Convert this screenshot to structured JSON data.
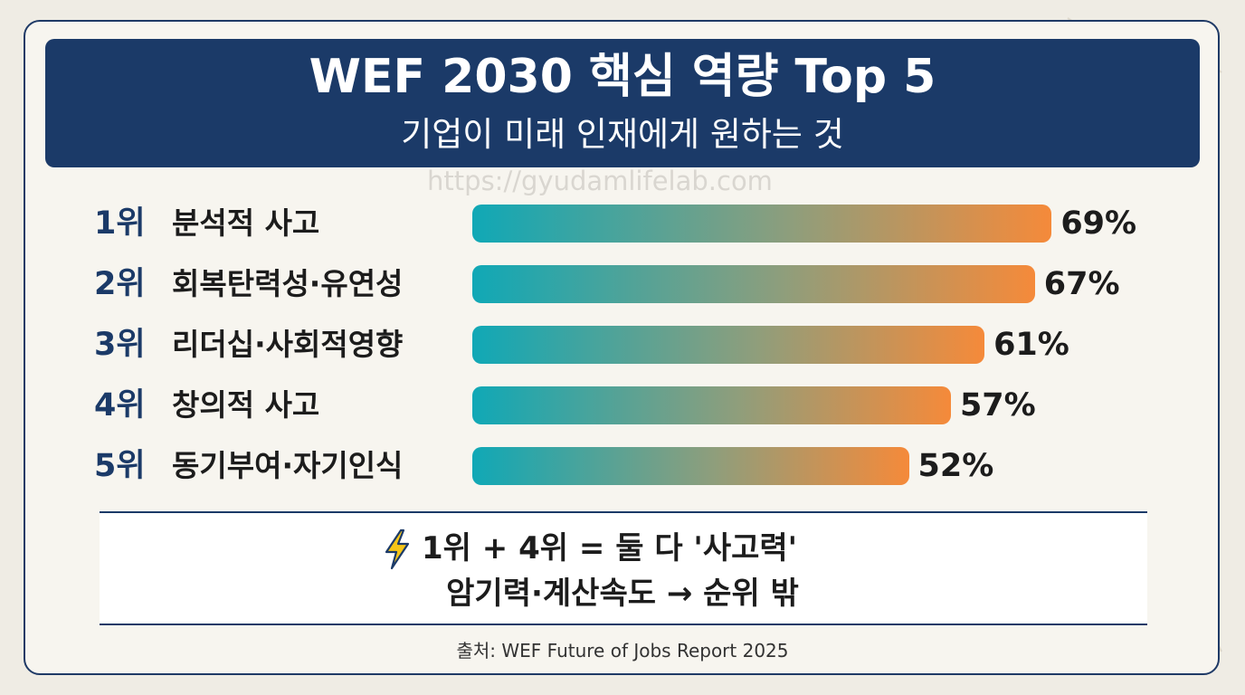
{
  "header": {
    "title": "WEF 2030 핵심 역량 Top 5",
    "subtitle": "기업이 미래 인재에게 원하는 것"
  },
  "watermark": "https://gyudamlifelab.com",
  "chart_data": {
    "type": "bar",
    "orientation": "horizontal",
    "title": "WEF 2030 핵심 역량 Top 5",
    "subtitle": "기업이 미래 인재에게 원하는 것",
    "categories": [
      "분석적 사고",
      "회복탄력성·유연성",
      "리더십·사회적영향",
      "창의적 사고",
      "동기부여·자기인식"
    ],
    "ranks": [
      "1위",
      "2위",
      "3위",
      "4위",
      "5위"
    ],
    "values": [
      69,
      67,
      61,
      57,
      52
    ],
    "value_labels": [
      "69%",
      "67%",
      "61%",
      "57%",
      "52%"
    ],
    "unit": "%",
    "bar_colors": [
      "#10a8b6",
      "#f58a3a"
    ],
    "grid": false,
    "legend": "none"
  },
  "callout": {
    "icon": "lightning-icon",
    "line1": "1위 + 4위 = 둘 다 '사고력'",
    "line2": "암기력·계산속도 → 순위 밖"
  },
  "source": "출처: WEF Future of Jobs Report 2025",
  "colors": {
    "navy": "#1b3a68",
    "teal": "#10a8b6",
    "orange": "#f58a3a",
    "background": "#efece4"
  }
}
